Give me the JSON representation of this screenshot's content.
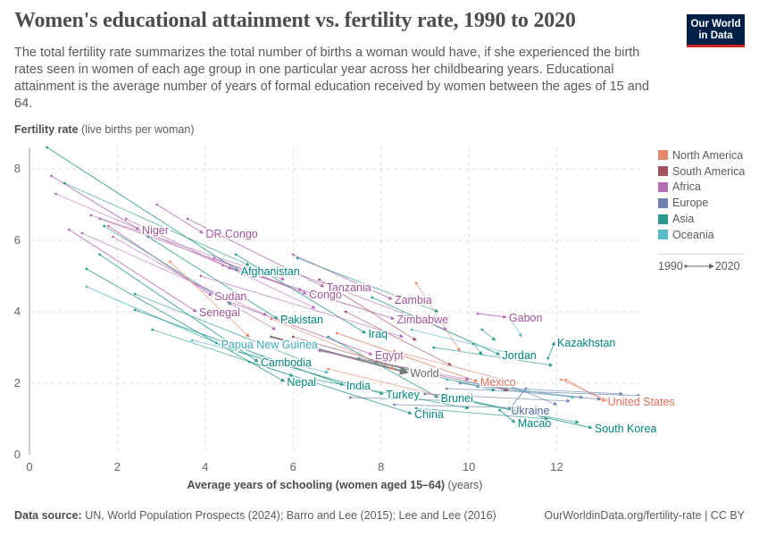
{
  "header": {
    "title": "Women's educational attainment vs. fertility rate, 1990 to 2020",
    "subtitle": "The total fertility rate summarizes the total number of births a woman would have, if she experienced the birth rates seen in women of each age group in one particular year across her childbearing years. Educational attainment is the average number of years of formal education received by women between the ages of 15 and 64.",
    "logo": "Our World in Data"
  },
  "footer": {
    "source_label": "Data source:",
    "source": "UN, World Population Prospects (2024); Barro and Lee (2015); Lee and Lee (2016)",
    "license": "OurWorldinData.org/fertility-rate | CC BY"
  },
  "legend": {
    "items": [
      {
        "label": "North America",
        "color": "#e6866a"
      },
      {
        "label": "South America",
        "color": "#a2515f"
      },
      {
        "label": "Africa",
        "color": "#b36fb4"
      },
      {
        "label": "Europe",
        "color": "#6d83ae"
      },
      {
        "label": "Asia",
        "color": "#2c9a8e"
      },
      {
        "label": "Oceania",
        "color": "#58bbc8"
      }
    ],
    "start_year": "1990",
    "end_year": "2020"
  },
  "chart_data": {
    "type": "scatter",
    "title": "Women's educational attainment vs. fertility rate, 1990 to 2020",
    "xlabel": "Average years of schooling (women aged 15–64)",
    "xlabel_unit": "(years)",
    "ylabel": "Fertility rate",
    "ylabel_unit": "(live births per woman)",
    "xlim": [
      0,
      13.9
    ],
    "ylim": [
      0,
      8.6
    ],
    "xticks": [
      0,
      2,
      4,
      6,
      8,
      10,
      12
    ],
    "yticks": [
      0,
      2,
      4,
      6,
      8
    ],
    "region_colors": {
      "North America": "#e6866a",
      "South America": "#a2515f",
      "Africa": "#b36fb4",
      "Europe": "#6d83ae",
      "Asia": "#2c9a8e",
      "Oceania": "#58bbc8",
      "World": "#777777"
    },
    "label_colors": {
      "North America": "#e56e5a",
      "South America": "#a2515f",
      "Africa": "#a2559c",
      "Europe": "#4c6a9c",
      "Asia": "#00847e",
      "Oceania": "#38aaba",
      "World": "#6b6b6b"
    },
    "series": [
      {
        "name": "Niger",
        "region": "Africa",
        "x": [
          0.5,
          2.5
        ],
        "y": [
          7.8,
          6.3
        ],
        "label": true
      },
      {
        "name": "DR Congo",
        "region": "Africa",
        "x": [
          2.9,
          3.95
        ],
        "y": [
          7.0,
          6.2
        ],
        "label": true
      },
      {
        "name": "Afghanistan",
        "region": "Asia",
        "x": [
          0.4,
          4.75
        ],
        "y": [
          8.6,
          5.15
        ],
        "label": true
      },
      {
        "name": "Tanzania",
        "region": "Africa",
        "x": [
          3.6,
          6.7
        ],
        "y": [
          6.6,
          4.7
        ],
        "label": true
      },
      {
        "name": "Zambia",
        "region": "Africa",
        "x": [
          6.0,
          8.25
        ],
        "y": [
          5.6,
          4.35
        ],
        "label": true
      },
      {
        "name": "Sudan",
        "region": "Africa",
        "x": [
          1.8,
          4.15
        ],
        "y": [
          6.4,
          4.45
        ],
        "label": true
      },
      {
        "name": "Congo",
        "region": "Africa",
        "x": [
          4.2,
          6.3
        ],
        "y": [
          5.5,
          4.5
        ],
        "label": true
      },
      {
        "name": "Senegal",
        "region": "Africa",
        "x": [
          0.9,
          3.8
        ],
        "y": [
          6.3,
          4.0
        ],
        "label": true
      },
      {
        "name": "Zimbabwe",
        "region": "Africa",
        "x": [
          4.4,
          8.3
        ],
        "y": [
          5.3,
          3.8
        ],
        "label": true
      },
      {
        "name": "Gabon",
        "region": "Africa",
        "x": [
          10.2,
          10.85
        ],
        "y": [
          3.95,
          3.85
        ],
        "label": true
      },
      {
        "name": "Kazakhstan",
        "region": "Asia",
        "x": [
          11.8,
          11.95
        ],
        "y": [
          2.7,
          3.15
        ],
        "label": true
      },
      {
        "name": "Jordan",
        "region": "Asia",
        "x": [
          7.8,
          10.7
        ],
        "y": [
          4.4,
          2.8
        ],
        "label": true
      },
      {
        "name": "Pakistan",
        "region": "Asia",
        "x": [
          2.7,
          5.65
        ],
        "y": [
          6.1,
          3.8
        ],
        "label": true
      },
      {
        "name": "Iraq",
        "region": "Asia",
        "x": [
          4.7,
          7.65
        ],
        "y": [
          5.6,
          3.4
        ],
        "label": true
      },
      {
        "name": "Papua New Guinea",
        "region": "Oceania",
        "x": [
          1.3,
          4.3
        ],
        "y": [
          4.7,
          3.1
        ],
        "label": true
      },
      {
        "name": "Egypt",
        "region": "Africa",
        "x": [
          4.5,
          7.8
        ],
        "y": [
          4.3,
          2.8
        ],
        "label": true
      },
      {
        "name": "World",
        "region": "World",
        "x": [
          5.5,
          8.6
        ],
        "y": [
          3.3,
          2.3
        ],
        "label": true
      },
      {
        "name": "Cambodia",
        "region": "Asia",
        "x": [
          1.6,
          5.2
        ],
        "y": [
          5.6,
          2.6
        ],
        "label": true
      },
      {
        "name": "Nepal",
        "region": "Asia",
        "x": [
          1.3,
          5.8
        ],
        "y": [
          5.2,
          2.05
        ],
        "label": true
      },
      {
        "name": "India",
        "region": "Asia",
        "x": [
          2.4,
          7.15
        ],
        "y": [
          4.05,
          1.95
        ],
        "label": true
      },
      {
        "name": "Mexico",
        "region": "North America",
        "x": [
          7.0,
          10.2
        ],
        "y": [
          3.4,
          2.05
        ],
        "label": true
      },
      {
        "name": "Turkey",
        "region": "Asia",
        "x": [
          4.4,
          8.05
        ],
        "y": [
          3.0,
          1.7
        ],
        "label": true
      },
      {
        "name": "Brunei",
        "region": "Asia",
        "x": [
          6.8,
          9.3
        ],
        "y": [
          3.3,
          1.6
        ],
        "label": true
      },
      {
        "name": "United States",
        "region": "North America",
        "x": [
          12.2,
          13.1
        ],
        "y": [
          2.1,
          1.5
        ],
        "label": true
      },
      {
        "name": "China",
        "region": "Asia",
        "x": [
          5.0,
          8.7
        ],
        "y": [
          2.6,
          1.15
        ],
        "label": true
      },
      {
        "name": "Ukraine",
        "region": "Europe",
        "x": [
          11.3,
          10.9
        ],
        "y": [
          1.85,
          1.25
        ],
        "label": true
      },
      {
        "name": "Macao",
        "region": "Asia",
        "x": [
          10.7,
          11.05
        ],
        "y": [
          1.25,
          0.9
        ],
        "label": true
      },
      {
        "name": "South Korea",
        "region": "Asia",
        "x": [
          9.7,
          12.8
        ],
        "y": [
          1.6,
          0.75
        ],
        "label": true
      },
      {
        "name": "",
        "region": "Africa",
        "x": [
          0.6,
          4.6
        ],
        "y": [
          7.3,
          5.2
        ]
      },
      {
        "name": "",
        "region": "Asia",
        "x": [
          0.8,
          5.0
        ],
        "y": [
          7.6,
          5.3
        ]
      },
      {
        "name": "",
        "region": "Africa",
        "x": [
          1.4,
          5.8
        ],
        "y": [
          6.7,
          4.9
        ]
      },
      {
        "name": "",
        "region": "Africa",
        "x": [
          1.6,
          6.2
        ],
        "y": [
          6.6,
          4.6
        ]
      },
      {
        "name": "",
        "region": "Africa",
        "x": [
          2.2,
          6.5
        ],
        "y": [
          6.6,
          4.1
        ]
      },
      {
        "name": "",
        "region": "Asia",
        "x": [
          1.7,
          4.6
        ],
        "y": [
          6.4,
          4.2
        ]
      },
      {
        "name": "",
        "region": "Africa",
        "x": [
          1.2,
          5.4
        ],
        "y": [
          6.2,
          3.9
        ]
      },
      {
        "name": "",
        "region": "Africa",
        "x": [
          1.9,
          5.6
        ],
        "y": [
          6.1,
          3.5
        ]
      },
      {
        "name": "",
        "region": "Asia",
        "x": [
          6.1,
          9.3
        ],
        "y": [
          5.5,
          4.0
        ]
      },
      {
        "name": "",
        "region": "North America",
        "x": [
          3.2,
          5.0
        ],
        "y": [
          5.4,
          3.3
        ]
      },
      {
        "name": "",
        "region": "North America",
        "x": [
          8.8,
          9.8
        ],
        "y": [
          4.8,
          2.9
        ]
      },
      {
        "name": "",
        "region": "Africa",
        "x": [
          5.8,
          9.5
        ],
        "y": [
          5.2,
          3.5
        ]
      },
      {
        "name": "",
        "region": "Africa",
        "x": [
          3.9,
          8.5
        ],
        "y": [
          5.0,
          3.3
        ]
      },
      {
        "name": "",
        "region": "South America",
        "x": [
          6.6,
          8.8
        ],
        "y": [
          4.9,
          3.2
        ]
      },
      {
        "name": "",
        "region": "South America",
        "x": [
          7.2,
          9.6
        ],
        "y": [
          4.0,
          2.5
        ]
      },
      {
        "name": "",
        "region": "South America",
        "x": [
          6.0,
          9.1
        ],
        "y": [
          3.3,
          2.2
        ]
      },
      {
        "name": "",
        "region": "North America",
        "x": [
          5.5,
          8.3
        ],
        "y": [
          3.8,
          2.4
        ]
      },
      {
        "name": "",
        "region": "Asia",
        "x": [
          2.4,
          6.3
        ],
        "y": [
          4.5,
          2.6
        ]
      },
      {
        "name": "",
        "region": "Asia",
        "x": [
          2.8,
          6.0
        ],
        "y": [
          3.5,
          2.2
        ]
      },
      {
        "name": "",
        "region": "Oceania",
        "x": [
          3.7,
          6.8
        ],
        "y": [
          3.2,
          2.3
        ]
      },
      {
        "name": "",
        "region": "Asia",
        "x": [
          9.2,
          11.9
        ],
        "y": [
          3.0,
          2.5
        ]
      },
      {
        "name": "",
        "region": "Asia",
        "x": [
          10.3,
          10.6
        ],
        "y": [
          3.5,
          3.2
        ]
      },
      {
        "name": "",
        "region": "Asia",
        "x": [
          10.1,
          10.3
        ],
        "y": [
          3.1,
          2.8
        ]
      },
      {
        "name": "",
        "region": "Oceania",
        "x": [
          11.0,
          11.2
        ],
        "y": [
          3.7,
          3.3
        ]
      },
      {
        "name": "",
        "region": "Oceania",
        "x": [
          8.7,
          11.4
        ],
        "y": [
          3.5,
          2.7
        ]
      },
      {
        "name": "",
        "region": "North America",
        "x": [
          8.3,
          11.1
        ],
        "y": [
          2.9,
          2.0
        ]
      },
      {
        "name": "",
        "region": "North America",
        "x": [
          12.1,
          13.2
        ],
        "y": [
          2.1,
          1.5
        ]
      },
      {
        "name": "",
        "region": "Europe",
        "x": [
          9.5,
          13.9
        ],
        "y": [
          1.85,
          1.65
        ]
      },
      {
        "name": "",
        "region": "Europe",
        "x": [
          10.2,
          13.5
        ],
        "y": [
          1.9,
          1.7
        ]
      },
      {
        "name": "",
        "region": "Europe",
        "x": [
          9.0,
          12.3
        ],
        "y": [
          1.7,
          1.5
        ]
      },
      {
        "name": "",
        "region": "Europe",
        "x": [
          8.3,
          11.6
        ],
        "y": [
          1.4,
          1.3
        ]
      },
      {
        "name": "",
        "region": "Europe",
        "x": [
          9.8,
          12.6
        ],
        "y": [
          2.0,
          1.6
        ]
      },
      {
        "name": "",
        "region": "Europe",
        "x": [
          7.3,
          10.0
        ],
        "y": [
          1.6,
          1.5
        ]
      },
      {
        "name": "",
        "region": "Europe",
        "x": [
          10.8,
          13.0
        ],
        "y": [
          1.8,
          1.55
        ]
      },
      {
        "name": "",
        "region": "Europe",
        "x": [
          11.0,
          12.0
        ],
        "y": [
          1.9,
          1.4
        ]
      },
      {
        "name": "",
        "region": "Asia",
        "x": [
          9.9,
          12.5
        ],
        "y": [
          1.5,
          0.9
        ]
      },
      {
        "name": "",
        "region": "Asia",
        "x": [
          8.8,
          11.8
        ],
        "y": [
          1.3,
          1.0
        ]
      },
      {
        "name": "",
        "region": "Asia",
        "x": [
          7.5,
          10.6
        ],
        "y": [
          2.7,
          1.8
        ]
      },
      {
        "name": "",
        "region": "South America",
        "x": [
          7.9,
          10.9
        ],
        "y": [
          2.6,
          1.8
        ]
      },
      {
        "name": "",
        "region": "North America",
        "x": [
          6.8,
          9.5
        ],
        "y": [
          2.4,
          1.6
        ]
      },
      {
        "name": "",
        "region": "Asia",
        "x": [
          6.5,
          10.0
        ],
        "y": [
          2.1,
          1.3
        ]
      },
      {
        "name": "",
        "region": "Oceania",
        "x": [
          9.5,
          12.4
        ],
        "y": [
          2.1,
          1.6
        ]
      },
      {
        "name": "",
        "region": "Africa",
        "x": [
          6.6,
          10.0
        ],
        "y": [
          2.9,
          2.1
        ]
      }
    ]
  }
}
